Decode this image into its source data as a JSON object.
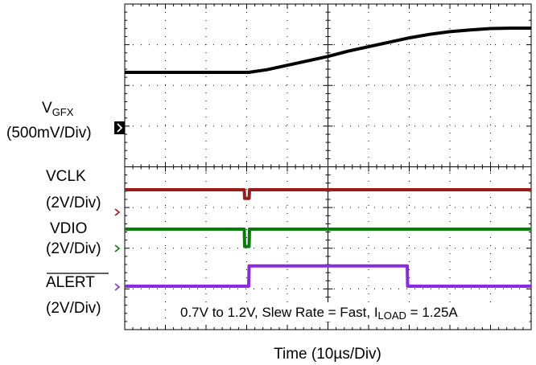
{
  "chart_data": {
    "type": "line",
    "title": "",
    "xlabel": "Time (10µs/Div)",
    "time_per_div_us": 10,
    "divisions": {
      "x": 10,
      "y": 8
    },
    "grid": true,
    "annotation": {
      "pre": "0.7V to 1.2V, Slew Rate = Fast, I",
      "sub": "LOAD",
      "post": " = 1.25A"
    },
    "channels": [
      {
        "name": "VGFX",
        "label_main": "V",
        "label_sub": "GFX",
        "scale": "(500mV/Div)",
        "color": "#000000",
        "unit": "V",
        "x_div": [
          0,
          6.1,
          7.0,
          8.0,
          9.0,
          10.0,
          11.0,
          12.0,
          13.0,
          14.0,
          15.0,
          16.0,
          17.0,
          18.0,
          19.0,
          20.0
        ],
        "y": [
          0.7,
          0.7,
          0.73,
          0.78,
          0.83,
          0.88,
          0.94,
          0.99,
          1.04,
          1.09,
          1.13,
          1.16,
          1.18,
          1.195,
          1.2,
          1.2
        ]
      },
      {
        "name": "VCLK",
        "scale": "(2V/Div)",
        "color": "#9b1b1b",
        "unit": "V",
        "x_div": [
          0,
          5.88,
          5.9,
          6.12,
          6.14,
          20.0
        ],
        "y": [
          1.8,
          1.8,
          0.9,
          0.9,
          1.8,
          1.8
        ]
      },
      {
        "name": "VDIO",
        "scale": "(2V/Div)",
        "color": "#0a7a0a",
        "unit": "V",
        "x_div": [
          0,
          5.88,
          5.9,
          6.12,
          6.14,
          20.0
        ],
        "y": [
          1.8,
          1.8,
          0.0,
          0.0,
          1.8,
          1.8
        ]
      },
      {
        "name": "ALERT",
        "scale": "(2V/Div)",
        "color": "#8a2be2",
        "unit": "V",
        "x_div": [
          0,
          6.1,
          6.12,
          13.9,
          13.92,
          20.0
        ],
        "y": [
          0.0,
          0.0,
          1.8,
          1.8,
          0.0,
          0.0
        ]
      }
    ]
  }
}
